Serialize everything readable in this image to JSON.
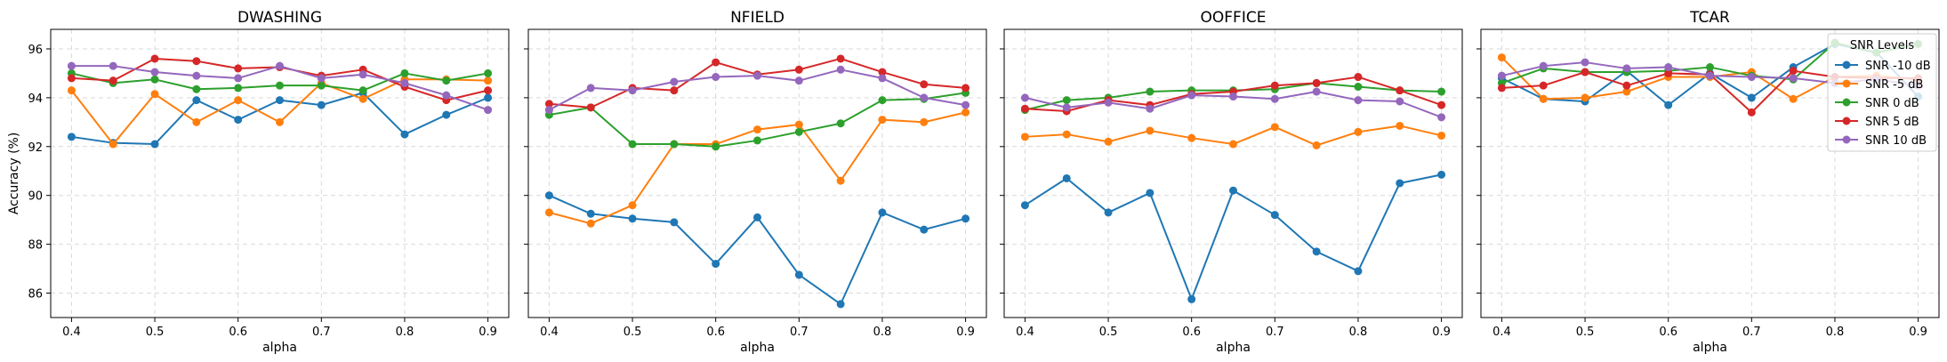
{
  "chart_data": [
    {
      "type": "line",
      "title": "DWASHING",
      "xlabel": "alpha",
      "ylabel": "Accuracy (%)",
      "x": [
        0.4,
        0.45,
        0.5,
        0.55,
        0.6,
        0.65,
        0.7,
        0.75,
        0.8,
        0.85,
        0.9
      ],
      "xticks": [
        "0.4",
        "0.5",
        "0.6",
        "0.7",
        "0.8",
        "0.9"
      ],
      "yticks": [
        "86",
        "88",
        "90",
        "92",
        "94",
        "96"
      ],
      "xlim": [
        0.375,
        0.925
      ],
      "ylim": [
        85.0,
        96.8
      ],
      "grid": true,
      "series": [
        {
          "name": "SNR -10 dB",
          "values": [
            92.4,
            92.15,
            92.1,
            93.9,
            93.1,
            93.9,
            93.7,
            94.2,
            92.5,
            93.3,
            94.0
          ]
        },
        {
          "name": "SNR -5 dB",
          "values": [
            94.3,
            92.1,
            94.15,
            93.0,
            93.9,
            93.0,
            94.6,
            93.95,
            94.75,
            94.75,
            94.7
          ]
        },
        {
          "name": "SNR 0 dB",
          "values": [
            95.0,
            94.6,
            94.75,
            94.35,
            94.4,
            94.5,
            94.5,
            94.3,
            95.0,
            94.7,
            95.0
          ]
        },
        {
          "name": "SNR 5 dB",
          "values": [
            94.8,
            94.7,
            95.6,
            95.5,
            95.2,
            95.25,
            94.9,
            95.15,
            94.45,
            93.9,
            94.3
          ]
        },
        {
          "name": "SNR 10 dB",
          "values": [
            95.3,
            95.3,
            95.05,
            94.9,
            94.8,
            95.3,
            94.8,
            94.95,
            94.6,
            94.1,
            93.5
          ]
        }
      ]
    },
    {
      "type": "line",
      "title": "NFIELD",
      "xlabel": "alpha",
      "x": [
        0.4,
        0.45,
        0.5,
        0.55,
        0.6,
        0.65,
        0.7,
        0.75,
        0.8,
        0.85,
        0.9
      ],
      "xticks": [
        "0.4",
        "0.5",
        "0.6",
        "0.7",
        "0.8",
        "0.9"
      ],
      "xlim": [
        0.375,
        0.925
      ],
      "ylim": [
        85.0,
        96.8
      ],
      "grid": true,
      "series": [
        {
          "name": "SNR -10 dB",
          "values": [
            90.0,
            89.25,
            89.05,
            88.9,
            87.2,
            89.1,
            86.75,
            85.55,
            89.3,
            88.6,
            89.05
          ]
        },
        {
          "name": "SNR -5 dB",
          "values": [
            89.3,
            88.85,
            89.6,
            92.1,
            92.1,
            92.7,
            92.9,
            90.6,
            93.1,
            93.0,
            93.4
          ]
        },
        {
          "name": "SNR 0 dB",
          "values": [
            93.3,
            93.6,
            92.1,
            92.1,
            92.0,
            92.25,
            92.6,
            92.95,
            93.9,
            93.95,
            94.2
          ]
        },
        {
          "name": "SNR 5 dB",
          "values": [
            93.75,
            93.6,
            94.4,
            94.3,
            95.45,
            94.95,
            95.15,
            95.6,
            95.05,
            94.55,
            94.4
          ]
        },
        {
          "name": "SNR 10 dB",
          "values": [
            93.5,
            94.4,
            94.3,
            94.65,
            94.85,
            94.9,
            94.7,
            95.15,
            94.8,
            94.0,
            93.7
          ]
        }
      ]
    },
    {
      "type": "line",
      "title": "OOFFICE",
      "xlabel": "alpha",
      "x": [
        0.4,
        0.45,
        0.5,
        0.55,
        0.6,
        0.65,
        0.7,
        0.75,
        0.8,
        0.85,
        0.9
      ],
      "xticks": [
        "0.4",
        "0.5",
        "0.6",
        "0.7",
        "0.8",
        "0.9"
      ],
      "xlim": [
        0.375,
        0.925
      ],
      "ylim": [
        85.0,
        96.8
      ],
      "grid": true,
      "series": [
        {
          "name": "SNR -10 dB",
          "values": [
            89.6,
            90.7,
            89.3,
            90.1,
            85.75,
            90.2,
            89.2,
            87.7,
            86.9,
            90.5,
            90.85
          ]
        },
        {
          "name": "SNR -5 dB",
          "values": [
            92.4,
            92.5,
            92.2,
            92.65,
            92.35,
            92.1,
            92.8,
            92.05,
            92.6,
            92.85,
            92.45
          ]
        },
        {
          "name": "SNR 0 dB",
          "values": [
            93.5,
            93.9,
            94.0,
            94.25,
            94.3,
            94.3,
            94.35,
            94.6,
            94.45,
            94.3,
            94.25
          ]
        },
        {
          "name": "SNR 5 dB",
          "values": [
            93.55,
            93.45,
            93.9,
            93.7,
            94.15,
            94.25,
            94.5,
            94.6,
            94.85,
            94.3,
            93.7
          ]
        },
        {
          "name": "SNR 10 dB",
          "values": [
            94.0,
            93.6,
            93.8,
            93.55,
            94.1,
            94.05,
            93.95,
            94.25,
            93.9,
            93.85,
            93.2
          ]
        }
      ]
    },
    {
      "type": "line",
      "title": "TCAR",
      "xlabel": "alpha",
      "x": [
        0.4,
        0.45,
        0.5,
        0.55,
        0.6,
        0.65,
        0.7,
        0.75,
        0.8,
        0.85,
        0.9
      ],
      "xticks": [
        "0.4",
        "0.5",
        "0.6",
        "0.7",
        "0.8",
        "0.9"
      ],
      "xlim": [
        0.375,
        0.925
      ],
      "ylim": [
        85.0,
        96.8
      ],
      "grid": true,
      "series": [
        {
          "name": "SNR -10 dB",
          "values": [
            94.8,
            93.95,
            93.85,
            95.1,
            93.7,
            95.0,
            94.0,
            95.25,
            96.2,
            95.85,
            94.05
          ]
        },
        {
          "name": "SNR -5 dB",
          "values": [
            95.65,
            93.95,
            94.0,
            94.25,
            94.85,
            94.85,
            95.05,
            93.95,
            94.85,
            94.9,
            94.75
          ]
        },
        {
          "name": "SNR 0 dB",
          "values": [
            94.6,
            95.2,
            95.05,
            95.05,
            95.1,
            95.25,
            94.9,
            94.75,
            96.25,
            95.85,
            96.2
          ]
        },
        {
          "name": "SNR 5 dB",
          "values": [
            94.4,
            94.5,
            95.05,
            94.5,
            95.0,
            94.95,
            93.4,
            95.1,
            94.85,
            94.8,
            94.8
          ]
        },
        {
          "name": "SNR 10 dB",
          "values": [
            94.9,
            95.3,
            95.45,
            95.2,
            95.25,
            94.9,
            94.85,
            94.8,
            94.6,
            94.75,
            94.5
          ]
        }
      ],
      "legend": {
        "title": "SNR Levels",
        "position": "top-right",
        "entries": [
          "SNR -10 dB",
          "SNR -5 dB",
          "SNR 0 dB",
          "SNR 5 dB",
          "SNR 10 dB"
        ]
      }
    }
  ],
  "colors": {
    "SNR -10 dB": "#1f77b4",
    "SNR -5 dB": "#ff7f0e",
    "SNR 0 dB": "#2ca02c",
    "SNR 5 dB": "#d62728",
    "SNR 10 dB": "#9467bd"
  }
}
